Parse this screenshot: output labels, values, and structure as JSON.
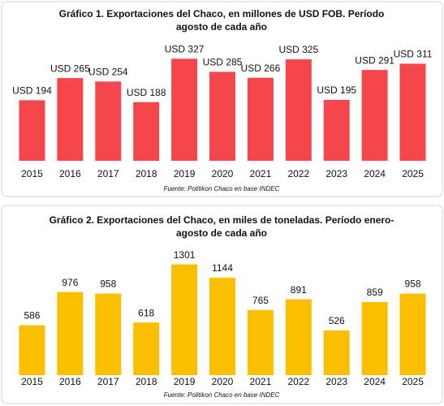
{
  "chart_data": [
    {
      "type": "bar",
      "title": [
        "Gráfico 1. Exportaciones del Chaco, en millones de USD FOB. Período",
        "agosto de cada año"
      ],
      "categories": [
        "2015",
        "2016",
        "2017",
        "2018",
        "2019",
        "2020",
        "2021",
        "2022",
        "2023",
        "2024",
        "2025"
      ],
      "values": [
        194,
        265,
        254,
        188,
        327,
        285,
        266,
        325,
        195,
        291,
        311
      ],
      "value_labels": [
        "USD 194",
        "USD 265",
        "USD 254",
        "USD 188",
        "USD 327",
        "USD 285",
        "USD 266",
        "USD 325",
        "USD 195",
        "USD 291",
        "USD 311"
      ],
      "color": "#f5474b",
      "ylim": [
        0,
        385
      ],
      "source": "Fuente: Politikon Chaco en base INDEC"
    },
    {
      "type": "bar",
      "title": [
        "Gráfico 2. Exportaciones del Chaco, en miles de toneladas. Período enero-",
        "agosto de cada año"
      ],
      "categories": [
        "2015",
        "2016",
        "2017",
        "2018",
        "2019",
        "2020",
        "2021",
        "2022",
        "2023",
        "2024",
        "2025"
      ],
      "values": [
        586,
        976,
        958,
        618,
        1301,
        1144,
        765,
        891,
        526,
        859,
        958
      ],
      "color": "#fcbf00",
      "ylim": [
        0,
        1450
      ],
      "source": "Fuente: Politikon Chaco en base INDEC"
    }
  ]
}
